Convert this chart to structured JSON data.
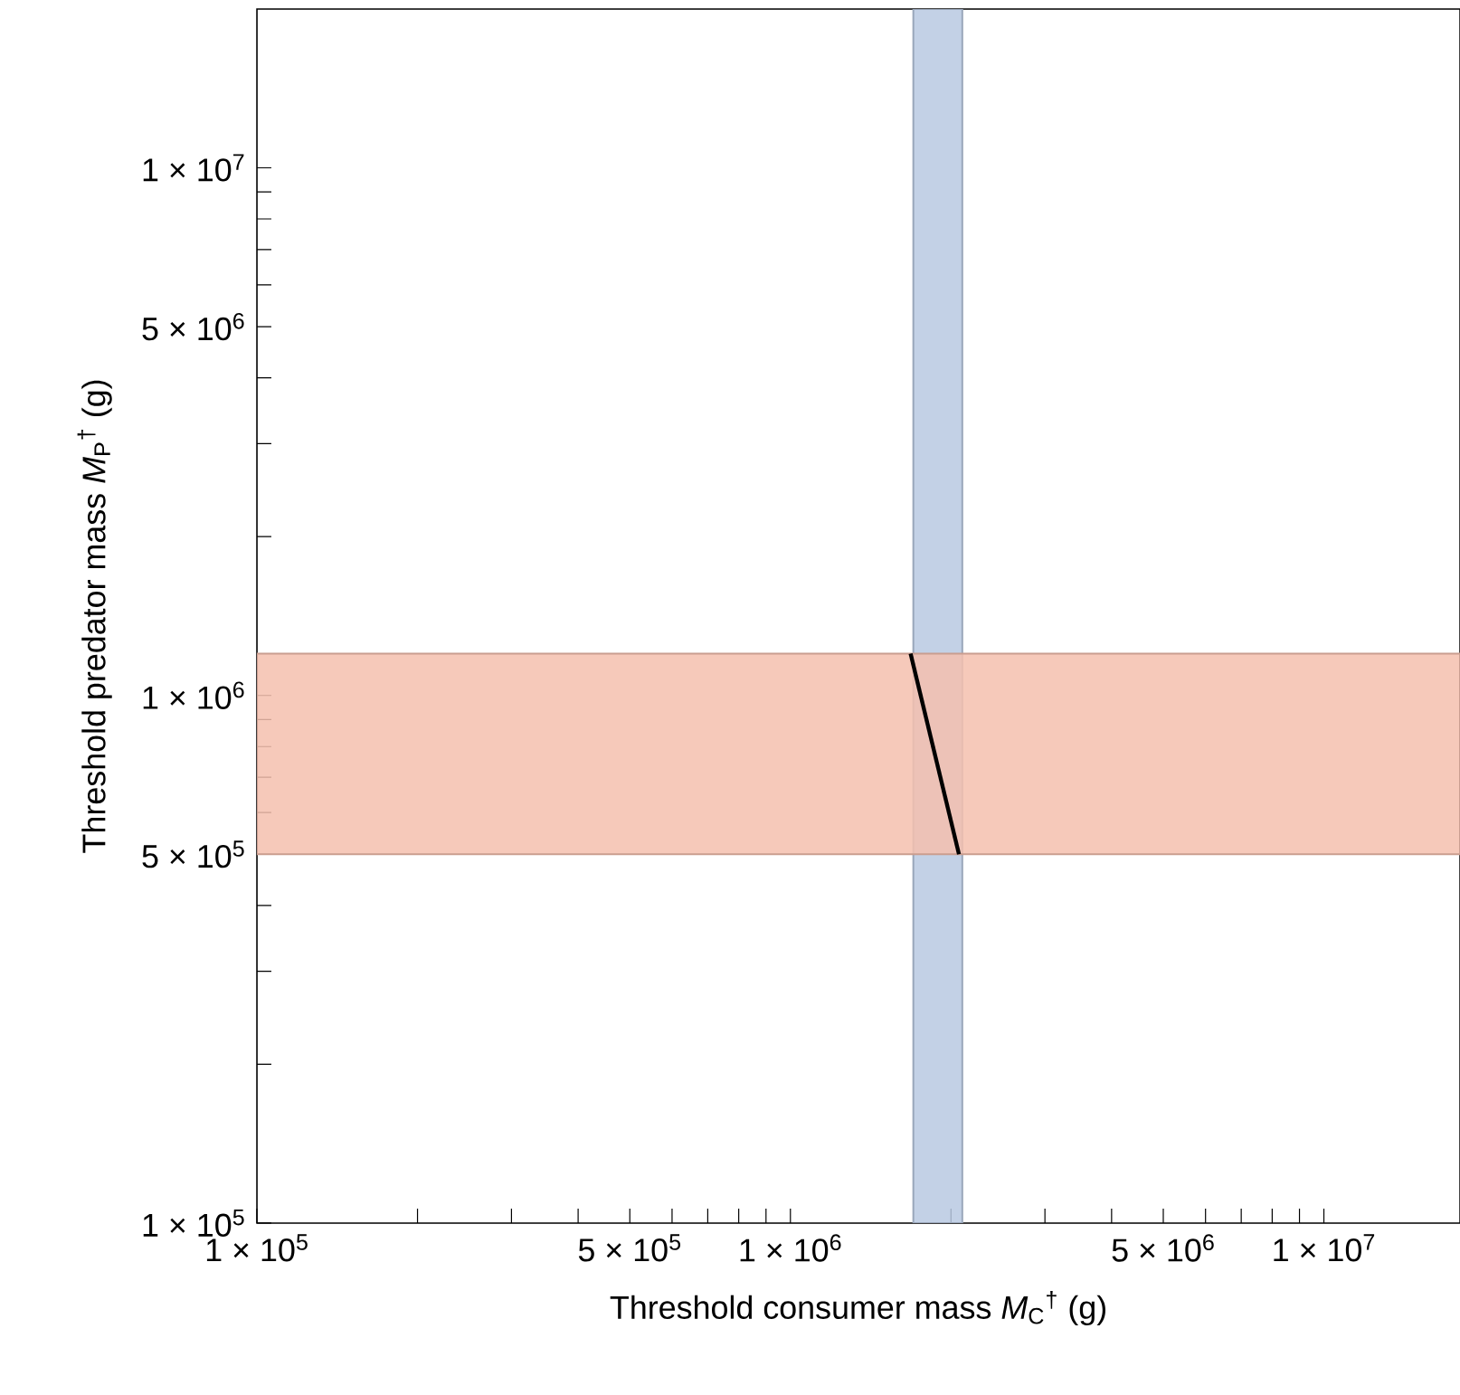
{
  "chart_data": {
    "type": "line",
    "xlabel": "Threshold consumer mass *M*$_{C}$$^{†}$ (g)",
    "ylabel": "Threshold predator mass *M*$_{P}$$^{†}$ (g)",
    "log": "xy",
    "xlim": [
      100000,
      18000000
    ],
    "ylim": [
      100000,
      20000000
    ],
    "xticks": [
      {
        "value": 100000,
        "label": "1 × 10$^{5}$"
      },
      {
        "value": 200000,
        "label": null
      },
      {
        "value": 300000,
        "label": null
      },
      {
        "value": 400000,
        "label": null
      },
      {
        "value": 500000,
        "label": "5 × 10$^{5}$"
      },
      {
        "value": 600000,
        "label": null
      },
      {
        "value": 700000,
        "label": null
      },
      {
        "value": 800000,
        "label": null
      },
      {
        "value": 900000,
        "label": null
      },
      {
        "value": 1000000,
        "label": "1 × 10$^{6}$"
      },
      {
        "value": 2000000,
        "label": null
      },
      {
        "value": 3000000,
        "label": null
      },
      {
        "value": 4000000,
        "label": null
      },
      {
        "value": 5000000,
        "label": "5 × 10$^{6}$"
      },
      {
        "value": 6000000,
        "label": null
      },
      {
        "value": 7000000,
        "label": null
      },
      {
        "value": 8000000,
        "label": null
      },
      {
        "value": 9000000,
        "label": null
      },
      {
        "value": 10000000,
        "label": "1 × 10$^{7}$"
      }
    ],
    "yticks": [
      {
        "value": 100000,
        "label": "1 × 10$^{5}$"
      },
      {
        "value": 200000,
        "label": null
      },
      {
        "value": 300000,
        "label": null
      },
      {
        "value": 400000,
        "label": null
      },
      {
        "value": 500000,
        "label": "5 × 10$^{5}$"
      },
      {
        "value": 600000,
        "label": null
      },
      {
        "value": 700000,
        "label": null
      },
      {
        "value": 800000,
        "label": null
      },
      {
        "value": 900000,
        "label": null
      },
      {
        "value": 1000000,
        "label": "1 × 10$^{6}$"
      },
      {
        "value": 2000000,
        "label": null
      },
      {
        "value": 3000000,
        "label": null
      },
      {
        "value": 4000000,
        "label": null
      },
      {
        "value": 5000000,
        "label": "5 × 10$^{6}$"
      },
      {
        "value": 6000000,
        "label": null
      },
      {
        "value": 7000000,
        "label": null
      },
      {
        "value": 8000000,
        "label": null
      },
      {
        "value": 9000000,
        "label": null
      },
      {
        "value": 10000000,
        "label": "1 × 10$^{7}$"
      }
    ],
    "bands": [
      {
        "axis": "x",
        "from": 1700000,
        "to": 2100000,
        "color": "#b9c9e2"
      },
      {
        "axis": "y",
        "from": 500000,
        "to": 1200000,
        "color": "#f5bfae"
      }
    ],
    "series": [
      {
        "color": "#000000",
        "x": [
          1680000,
          2070000
        ],
        "values": [
          1200000,
          500000
        ]
      }
    ],
    "marker": "none"
  }
}
